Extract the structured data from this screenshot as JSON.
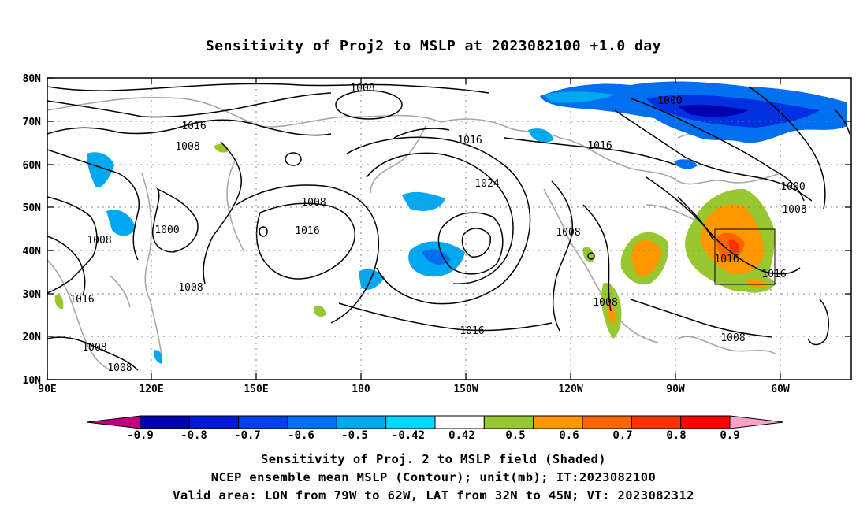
{
  "title": "Sensitivity of Proj2 to MSLP at 2023082100 +1.0 day",
  "map": {
    "lat_labels": [
      "80N",
      "70N",
      "60N",
      "50N",
      "40N",
      "30N",
      "20N",
      "10N"
    ],
    "lon_labels": [
      "90E",
      "120E",
      "150E",
      "180",
      "150W",
      "120W",
      "90W",
      "60W"
    ],
    "contour_labels": [
      {
        "text": "1008"
      },
      {
        "text": "1016"
      },
      {
        "text": "1008"
      },
      {
        "text": "1008"
      },
      {
        "text": "1000"
      },
      {
        "text": "1016"
      },
      {
        "text": "1008"
      },
      {
        "text": "1016"
      },
      {
        "text": "1008"
      },
      {
        "text": "1008"
      },
      {
        "text": "1016"
      },
      {
        "text": "1024"
      },
      {
        "text": "1008"
      },
      {
        "text": "1016"
      },
      {
        "text": "1016"
      },
      {
        "text": "1000"
      },
      {
        "text": "1000"
      },
      {
        "text": "1008"
      },
      {
        "text": "1016"
      },
      {
        "text": "1016"
      },
      {
        "text": "1008"
      },
      {
        "text": "1008"
      }
    ]
  },
  "colorbar": {
    "labels": [
      "-0.9",
      "-0.8",
      "-0.7",
      "-0.6",
      "-0.5",
      "-0.42",
      "0.42",
      "0.5",
      "0.6",
      "0.7",
      "0.8",
      "0.9"
    ],
    "colors": [
      "#c0007f",
      "#0000b0",
      "#0018d8",
      "#0040f0",
      "#0070f0",
      "#00a8f0",
      "#00d8ff",
      "#ffffff",
      "#98c830",
      "#ff9800",
      "#ff6400",
      "#ff3000",
      "#ff0000",
      "#ffa0c8"
    ]
  },
  "captions": {
    "line1": "Sensitivity of Proj. 2 to MSLP field (Shaded)",
    "line2": "NCEP ensemble mean MSLP (Contour); unit(mb); IT:2023082100",
    "line3": "Valid area: LON from 79W to 62W, LAT from 32N to 45N; VT: 2023082312"
  }
}
